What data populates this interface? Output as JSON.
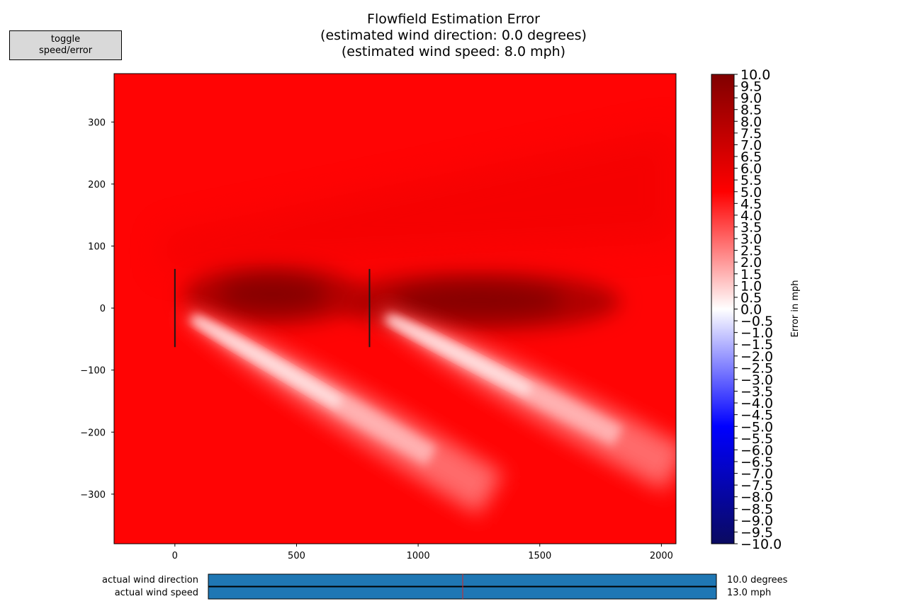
{
  "button": {
    "line1": "toggle",
    "line2": "speed/error"
  },
  "title": {
    "line1": "Flowfield Estimation Error",
    "line2": "(estimated wind direction: 0.0 degrees)",
    "line3": "(estimated wind speed: 8.0 mph)"
  },
  "colorbar": {
    "label": "Error in mph",
    "min": -10,
    "max": 10,
    "ticks": [
      "10.0",
      "9.5",
      "9.0",
      "8.5",
      "8.0",
      "7.5",
      "7.0",
      "6.5",
      "6.0",
      "5.5",
      "5.0",
      "4.5",
      "4.0",
      "3.5",
      "3.0",
      "2.5",
      "2.0",
      "1.5",
      "1.0",
      "0.5",
      "0.0",
      "−0.5",
      "−1.0",
      "−1.5",
      "−2.0",
      "−2.5",
      "−3.0",
      "−3.5",
      "−4.0",
      "−4.5",
      "−5.0",
      "−5.5",
      "−6.0",
      "−6.5",
      "−7.0",
      "−7.5",
      "−8.0",
      "−8.5",
      "−9.0",
      "−9.5",
      "−10.0"
    ],
    "colors": {
      "low": "#0a0a60",
      "mid_low": "#0000ff",
      "zero": "#ffffff",
      "mid_high": "#ff0000",
      "high": "#800000"
    }
  },
  "chart_data": {
    "type": "heatmap",
    "title": "Flowfield Estimation Error",
    "xlim": [
      -250,
      2060
    ],
    "ylim": [
      -380,
      378
    ],
    "xticks": [
      0,
      500,
      1000,
      1500,
      2000
    ],
    "yticks": [
      300,
      200,
      100,
      0,
      -100,
      -200,
      -300
    ],
    "xtick_labels": [
      "0",
      "500",
      "1000",
      "1500",
      "2000"
    ],
    "ytick_labels": [
      "300",
      "200",
      "100",
      "0",
      "−100",
      "−200",
      "−300"
    ],
    "background_error": 5.0,
    "turbines": [
      {
        "x": 0,
        "y_min": -63,
        "y_max": 63
      },
      {
        "x": 800,
        "y_min": -63,
        "y_max": 63
      }
    ],
    "wake_deficit_regions": [
      {
        "x_center": 400,
        "y_center": 20,
        "peak_error": 8.0
      },
      {
        "x_center": 1250,
        "y_center": 10,
        "peak_error": 8.0
      }
    ],
    "low_error_streaks": [
      {
        "from": [
          50,
          -10
        ],
        "to": [
          1300,
          -300
        ],
        "min_error": 0.5
      },
      {
        "from": [
          850,
          -10
        ],
        "to": [
          2060,
          -260
        ],
        "min_error": 0.5
      }
    ]
  },
  "sliders": [
    {
      "label": "actual wind direction",
      "value_text": "10.0 degrees",
      "color": "#1f77b4"
    },
    {
      "label": "actual wind speed",
      "value_text": "13.0 mph",
      "color": "#1f77b4"
    }
  ]
}
